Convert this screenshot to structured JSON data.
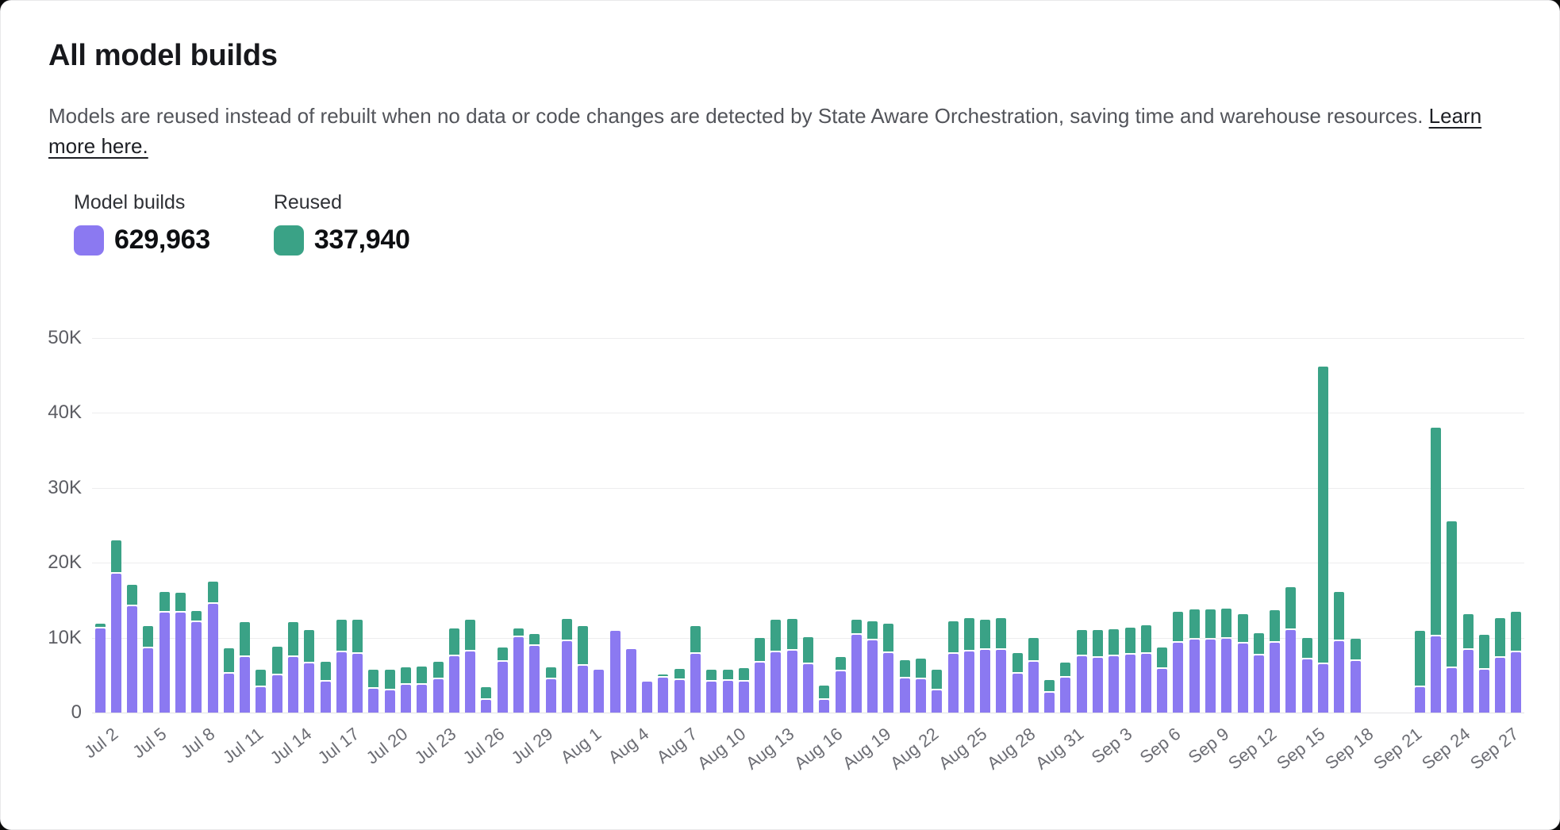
{
  "header": {
    "title": "All model builds",
    "description": "Models are reused instead of rebuilt when no data or code changes are detected by State Aware Orchestration, saving time and warehouse resources. ",
    "link_line1": "Learn",
    "link_line2": "more here."
  },
  "legend": {
    "items": [
      {
        "label": "Model builds",
        "value": "629,963",
        "color": "#8b79f1"
      },
      {
        "label": "Reused",
        "value": "337,940",
        "color": "#3aa286"
      }
    ]
  },
  "chart_data": {
    "type": "bar",
    "stacked": true,
    "title": "All model builds",
    "xlabel": "",
    "ylabel": "",
    "y_max": 50000,
    "grid": true,
    "legend_position": "top-left",
    "series_names": [
      "Model builds",
      "Reused"
    ],
    "series_colors": {
      "builds": "#8b79f1",
      "reused": "#3aa286"
    },
    "y_ticks": [
      {
        "label": "0",
        "value": 0
      },
      {
        "label": "10K",
        "value": 10000
      },
      {
        "label": "20K",
        "value": 20000
      },
      {
        "label": "30K",
        "value": 30000
      },
      {
        "label": "40K",
        "value": 40000
      },
      {
        "label": "50K",
        "value": 50000
      }
    ],
    "x_tick_every": 3,
    "days": [
      {
        "date": "Jul 2",
        "builds": 11200,
        "reused": 500
      },
      {
        "date": "Jul 3",
        "builds": 18500,
        "reused": 4300
      },
      {
        "date": "Jul 4",
        "builds": 14200,
        "reused": 2600
      },
      {
        "date": "Jul 5",
        "builds": 8600,
        "reused": 2700
      },
      {
        "date": "Jul 6",
        "builds": 13400,
        "reused": 2500
      },
      {
        "date": "Jul 7",
        "builds": 13400,
        "reused": 2400
      },
      {
        "date": "Jul 8",
        "builds": 12100,
        "reused": 1200
      },
      {
        "date": "Jul 9",
        "builds": 14500,
        "reused": 2800
      },
      {
        "date": "Jul 10",
        "builds": 5200,
        "reused": 3200
      },
      {
        "date": "Jul 11",
        "builds": 7400,
        "reused": 4500
      },
      {
        "date": "Jul 12",
        "builds": 3400,
        "reused": 2100
      },
      {
        "date": "Jul 13",
        "builds": 5000,
        "reused": 3600
      },
      {
        "date": "Jul 14",
        "builds": 7400,
        "reused": 4500
      },
      {
        "date": "Jul 15",
        "builds": 6600,
        "reused": 4200
      },
      {
        "date": "Jul 16",
        "builds": 4100,
        "reused": 2500
      },
      {
        "date": "Jul 17",
        "builds": 8000,
        "reused": 4200
      },
      {
        "date": "Jul 18",
        "builds": 7800,
        "reused": 4400
      },
      {
        "date": "Jul 19",
        "builds": 3200,
        "reused": 2300
      },
      {
        "date": "Jul 20",
        "builds": 3000,
        "reused": 2500
      },
      {
        "date": "Jul 21",
        "builds": 3700,
        "reused": 2100
      },
      {
        "date": "Jul 22",
        "builds": 3700,
        "reused": 2200
      },
      {
        "date": "Jul 23",
        "builds": 4500,
        "reused": 2100
      },
      {
        "date": "Jul 24",
        "builds": 7500,
        "reused": 3500
      },
      {
        "date": "Jul 25",
        "builds": 8200,
        "reused": 4000
      },
      {
        "date": "Jul 26",
        "builds": 1700,
        "reused": 1500
      },
      {
        "date": "Jul 27",
        "builds": 6800,
        "reused": 1700
      },
      {
        "date": "Jul 28",
        "builds": 10100,
        "reused": 900
      },
      {
        "date": "Jul 29",
        "builds": 8900,
        "reused": 1400
      },
      {
        "date": "Jul 30",
        "builds": 4400,
        "reused": 1400
      },
      {
        "date": "Jul 31",
        "builds": 9500,
        "reused": 2800
      },
      {
        "date": "Aug 1",
        "builds": 6300,
        "reused": 5000
      },
      {
        "date": "Aug 2",
        "builds": 5700,
        "reused": 0
      },
      {
        "date": "Aug 3",
        "builds": 10900,
        "reused": 0
      },
      {
        "date": "Aug 4",
        "builds": 8500,
        "reused": 0
      },
      {
        "date": "Aug 5",
        "builds": 4100,
        "reused": 0
      },
      {
        "date": "Aug 6",
        "builds": 4700,
        "reused": 200
      },
      {
        "date": "Aug 7",
        "builds": 4300,
        "reused": 1300
      },
      {
        "date": "Aug 8",
        "builds": 7800,
        "reused": 3500
      },
      {
        "date": "Aug 9",
        "builds": 4100,
        "reused": 1400
      },
      {
        "date": "Aug 10",
        "builds": 4200,
        "reused": 1300
      },
      {
        "date": "Aug 11",
        "builds": 4100,
        "reused": 1600
      },
      {
        "date": "Aug 12",
        "builds": 6700,
        "reused": 3100
      },
      {
        "date": "Aug 13",
        "builds": 8100,
        "reused": 4100
      },
      {
        "date": "Aug 14",
        "builds": 8300,
        "reused": 4000
      },
      {
        "date": "Aug 15",
        "builds": 6500,
        "reused": 3400
      },
      {
        "date": "Aug 16",
        "builds": 1700,
        "reused": 1700
      },
      {
        "date": "Aug 17",
        "builds": 5500,
        "reused": 1700
      },
      {
        "date": "Aug 18",
        "builds": 10400,
        "reused": 1800
      },
      {
        "date": "Aug 19",
        "builds": 9600,
        "reused": 2400
      },
      {
        "date": "Aug 20",
        "builds": 7900,
        "reused": 3800
      },
      {
        "date": "Aug 21",
        "builds": 4600,
        "reused": 2200
      },
      {
        "date": "Aug 22",
        "builds": 4500,
        "reused": 2500
      },
      {
        "date": "Aug 23",
        "builds": 3000,
        "reused": 2500
      },
      {
        "date": "Aug 24",
        "builds": 7800,
        "reused": 4200
      },
      {
        "date": "Aug 25",
        "builds": 8200,
        "reused": 4200
      },
      {
        "date": "Aug 26",
        "builds": 8400,
        "reused": 3800
      },
      {
        "date": "Aug 27",
        "builds": 8400,
        "reused": 4000
      },
      {
        "date": "Aug 28",
        "builds": 5200,
        "reused": 2500
      },
      {
        "date": "Aug 29",
        "builds": 6800,
        "reused": 3000
      },
      {
        "date": "Aug 30",
        "builds": 2700,
        "reused": 1400
      },
      {
        "date": "Aug 31",
        "builds": 4700,
        "reused": 1800
      },
      {
        "date": "Sep 1",
        "builds": 7500,
        "reused": 3300
      },
      {
        "date": "Sep 2",
        "builds": 7300,
        "reused": 3500
      },
      {
        "date": "Sep 3",
        "builds": 7500,
        "reused": 3400
      },
      {
        "date": "Sep 4",
        "builds": 7700,
        "reused": 3400
      },
      {
        "date": "Sep 5",
        "builds": 7800,
        "reused": 3600
      },
      {
        "date": "Sep 6",
        "builds": 5800,
        "reused": 2700
      },
      {
        "date": "Sep 7",
        "builds": 9300,
        "reused": 3900
      },
      {
        "date": "Sep 8",
        "builds": 9800,
        "reused": 3800
      },
      {
        "date": "Sep 9",
        "builds": 9800,
        "reused": 3800
      },
      {
        "date": "Sep 10",
        "builds": 9900,
        "reused": 3800
      },
      {
        "date": "Sep 11",
        "builds": 9200,
        "reused": 3700
      },
      {
        "date": "Sep 12",
        "builds": 7600,
        "reused": 2800
      },
      {
        "date": "Sep 13",
        "builds": 9300,
        "reused": 4200
      },
      {
        "date": "Sep 14",
        "builds": 11000,
        "reused": 5500
      },
      {
        "date": "Sep 15",
        "builds": 7100,
        "reused": 2600
      },
      {
        "date": "Sep 16",
        "builds": 6500,
        "reused": 39500
      },
      {
        "date": "Sep 17",
        "builds": 9500,
        "reused": 6400
      },
      {
        "date": "Sep 18",
        "builds": 6900,
        "reused": 2700
      },
      {
        "date": "Sep 19",
        "builds": null,
        "reused": null
      },
      {
        "date": "Sep 20",
        "builds": null,
        "reused": null
      },
      {
        "date": "Sep 21",
        "builds": null,
        "reused": null
      },
      {
        "date": "Sep 22",
        "builds": 3400,
        "reused": 7300
      },
      {
        "date": "Sep 23",
        "builds": 10200,
        "reused": 27600
      },
      {
        "date": "Sep 24",
        "builds": 5900,
        "reused": 19400
      },
      {
        "date": "Sep 25",
        "builds": 8400,
        "reused": 4500
      },
      {
        "date": "Sep 26",
        "builds": 5700,
        "reused": 4500
      },
      {
        "date": "Sep 27",
        "builds": 7300,
        "reused": 5100
      },
      {
        "date": "Sep 28",
        "builds": 8000,
        "reused": 5200
      }
    ]
  }
}
